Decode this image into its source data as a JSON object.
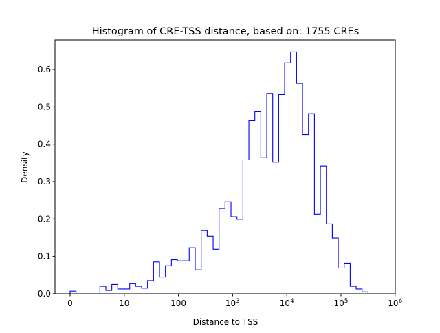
{
  "chart_data": {
    "type": "histogram-step",
    "title": "Histogram of CRE-TSS distance, based on: 1755 CREs",
    "xlabel": "Distance to TSS",
    "ylabel": "Density",
    "x_scale": "symlog",
    "x_linthresh": 10,
    "xlim": [
      -3,
      1000000
    ],
    "ylim": [
      0,
      0.68
    ],
    "grid": false,
    "line_color": "#0000ff",
    "x_ticks": [
      {
        "value": 0,
        "base": "0",
        "exp": ""
      },
      {
        "value": 10,
        "base": "10",
        "exp": ""
      },
      {
        "value": 100,
        "base": "100",
        "exp": ""
      },
      {
        "value": 1000,
        "base": "10",
        "exp": "3"
      },
      {
        "value": 10000,
        "base": "10",
        "exp": "4"
      },
      {
        "value": 100000,
        "base": "10",
        "exp": "5"
      },
      {
        "value": 1000000,
        "base": "10",
        "exp": "6"
      }
    ],
    "y_ticks": [
      "0.0",
      "0.1",
      "0.2",
      "0.3",
      "0.4",
      "0.5",
      "0.6"
    ],
    "bin_edges": [
      0,
      1.1,
      2.2,
      3.3,
      4.4,
      5.5,
      6.6,
      7.7,
      8.8,
      9.9,
      12.6,
      16.2,
      20.9,
      26.9,
      34.7,
      44.7,
      57.5,
      74.1,
      95.5,
      123,
      158,
      204,
      263,
      339,
      437,
      562,
      724,
      933,
      1202,
      1549,
      1995,
      2570,
      3311,
      4266,
      5495,
      7079,
      9120,
      11749,
      15136,
      19498,
      25119,
      32359,
      41687,
      53703,
      69183,
      89125,
      114815,
      147911,
      190546,
      245471,
      316228
    ],
    "density": [
      0.007,
      0,
      0,
      0,
      0,
      0.02,
      0.009,
      0.025,
      0.013,
      0.013,
      0.027,
      0.02,
      0.015,
      0.035,
      0.085,
      0.045,
      0.075,
      0.091,
      0.088,
      0.088,
      0.123,
      0.064,
      0.169,
      0.154,
      0.119,
      0.228,
      0.246,
      0.206,
      0.199,
      0.358,
      0.463,
      0.487,
      0.364,
      0.536,
      0.352,
      0.533,
      0.618,
      0.647,
      0.563,
      0.426,
      0.482,
      0.213,
      0.342,
      0.187,
      0.149,
      0.069,
      0.082,
      0.02,
      0.013,
      0.005
    ]
  }
}
